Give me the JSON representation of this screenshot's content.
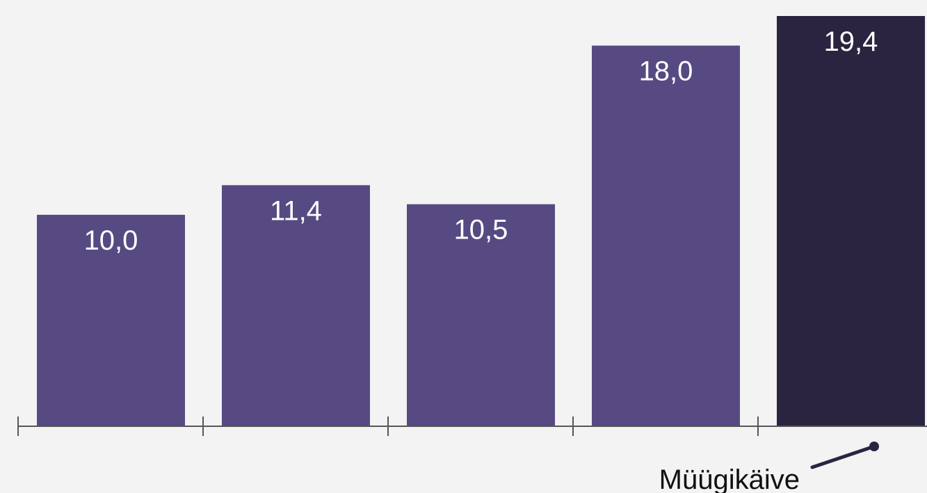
{
  "chart_data": {
    "type": "bar",
    "title": "",
    "xlabel": "",
    "ylabel": "",
    "categories": [
      "",
      "",
      "",
      "",
      ""
    ],
    "values": [
      10.0,
      11.4,
      10.5,
      18.0,
      19.4
    ],
    "value_labels": [
      "10,0",
      "11,4",
      "10,5",
      "18,0",
      "19,4"
    ],
    "ylim": [
      0,
      20
    ],
    "grid": false,
    "legend": "none",
    "colors": {
      "bar": "#574a82",
      "bar_highlight": "#2a2440",
      "axis": "#555555",
      "background": "#f3f3f3"
    },
    "highlight_index": 4,
    "annotation": {
      "text": "Müügikäive",
      "target_index": 4
    }
  }
}
